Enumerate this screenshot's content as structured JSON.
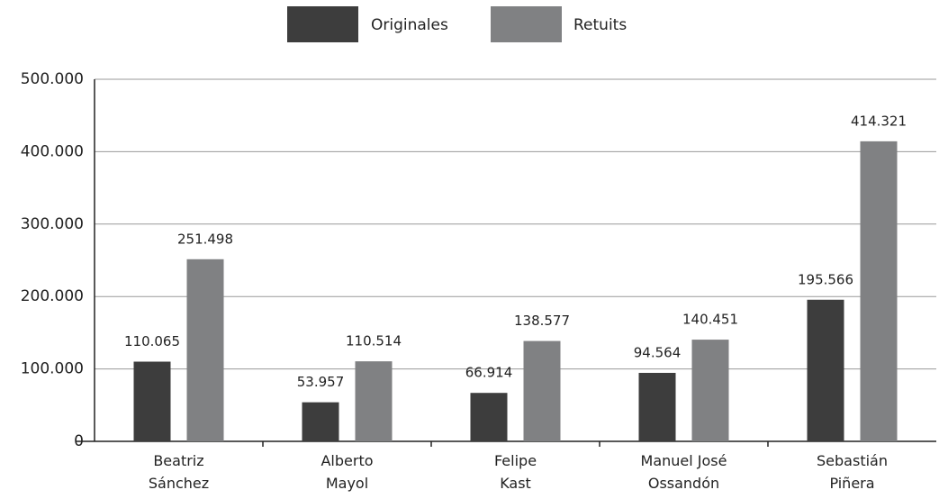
{
  "chart_data": {
    "type": "bar",
    "categories": [
      "Beatriz\nSánchez",
      "Alberto\nMayol",
      "Felipe\nKast",
      "Manuel José\nOssandón",
      "Sebastián\nPiñera"
    ],
    "series": [
      {
        "name": "Originales",
        "color": "#3d3d3d",
        "values": [
          110065,
          53957,
          66914,
          94564,
          195566
        ],
        "value_labels": [
          "110.065",
          "53.957",
          "66.914",
          "94.564",
          "195.566"
        ]
      },
      {
        "name": "Retuits",
        "color": "#808183",
        "values": [
          251498,
          110514,
          138577,
          140451,
          414321
        ],
        "value_labels": [
          "251.498",
          "110.514",
          "138.577",
          "140.451",
          "414.321"
        ]
      }
    ],
    "ylim": [
      0,
      500000
    ],
    "yticks": [
      0,
      {
        "value": 100000,
        "label": "100.000"
      },
      {
        "value": 200000,
        "label": "200.000"
      },
      {
        "value": 300000,
        "label": "300.000"
      },
      {
        "value": 400000,
        "label": "400.000"
      },
      {
        "value": 500000,
        "label": "500.000"
      }
    ],
    "grid": true
  }
}
